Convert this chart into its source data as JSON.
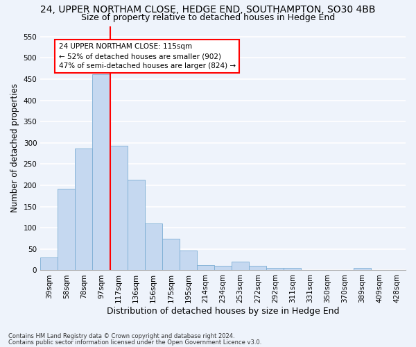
{
  "title1": "24, UPPER NORTHAM CLOSE, HEDGE END, SOUTHAMPTON, SO30 4BB",
  "title2": "Size of property relative to detached houses in Hedge End",
  "xlabel": "Distribution of detached houses by size in Hedge End",
  "ylabel": "Number of detached properties",
  "bar_values": [
    30,
    192,
    287,
    461,
    293,
    213,
    110,
    74,
    46,
    13,
    11,
    21,
    10,
    5,
    5,
    0,
    0,
    0,
    5,
    0,
    0
  ],
  "bar_labels": [
    "39sqm",
    "58sqm",
    "78sqm",
    "97sqm",
    "117sqm",
    "136sqm",
    "156sqm",
    "175sqm",
    "195sqm",
    "214sqm",
    "234sqm",
    "253sqm",
    "272sqm",
    "292sqm",
    "311sqm",
    "331sqm",
    "350sqm",
    "370sqm",
    "389sqm",
    "409sqm",
    "428sqm"
  ],
  "bar_color": "#c5d8f0",
  "bar_edgecolor": "#7badd4",
  "vline_color": "red",
  "vline_x_index": 3.5,
  "annotation_text": "24 UPPER NORTHAM CLOSE: 115sqm\n← 52% of detached houses are smaller (902)\n47% of semi-detached houses are larger (824) →",
  "annotation_box_color": "white",
  "annotation_box_edgecolor": "red",
  "ylim": [
    0,
    575
  ],
  "yticks": [
    0,
    50,
    100,
    150,
    200,
    250,
    300,
    350,
    400,
    450,
    500,
    550
  ],
  "footer1": "Contains HM Land Registry data © Crown copyright and database right 2024.",
  "footer2": "Contains public sector information licensed under the Open Government Licence v3.0.",
  "bg_color": "#eef3fb",
  "grid_color": "white",
  "title1_fontsize": 10,
  "title2_fontsize": 9,
  "ylabel_fontsize": 8.5,
  "xlabel_fontsize": 9,
  "tick_fontsize": 7.5,
  "annotation_fontsize": 7.5,
  "footer_fontsize": 6.0
}
